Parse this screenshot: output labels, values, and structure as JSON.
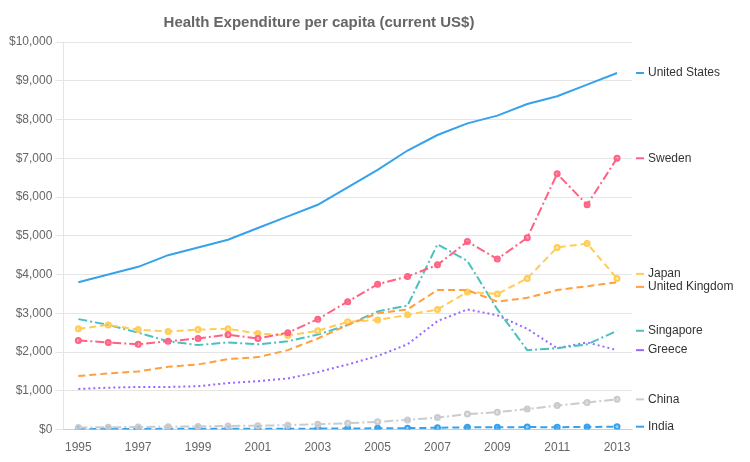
{
  "chart_data": {
    "type": "line",
    "title": "Health Expenditure per capita (current US$)",
    "x": [
      1995,
      1996,
      1997,
      1998,
      1999,
      2000,
      2001,
      2002,
      2003,
      2004,
      2005,
      2006,
      2007,
      2008,
      2009,
      2010,
      2011,
      2012,
      2013
    ],
    "series": [
      {
        "name": "United States",
        "values": [
          3800,
          4000,
          4200,
          4500,
          4700,
          4900,
          5200,
          5500,
          5800,
          6250,
          6700,
          7200,
          7600,
          7900,
          8100,
          8400,
          8600,
          8900,
          9200
        ],
        "line_style": "solid",
        "marker": "none"
      },
      {
        "name": "Sweden",
        "values": [
          2300,
          2250,
          2200,
          2280,
          2350,
          2450,
          2350,
          2500,
          2850,
          3300,
          3750,
          3950,
          4250,
          4850,
          4400,
          4950,
          6600,
          5800,
          7000
        ],
        "line_style": "dashdot",
        "marker": "dot"
      },
      {
        "name": "United Kingdom",
        "values": [
          1380,
          1450,
          1500,
          1620,
          1680,
          1820,
          1870,
          2050,
          2350,
          2700,
          3000,
          3100,
          3600,
          3600,
          3300,
          3400,
          3600,
          3700,
          3800
        ],
        "line_style": "dashed",
        "marker": "none"
      },
      {
        "name": "Japan",
        "values": [
          2600,
          2700,
          2580,
          2530,
          2580,
          2600,
          2480,
          2430,
          2550,
          2780,
          2830,
          2960,
          3100,
          3550,
          3500,
          3900,
          4700,
          4800,
          3900
        ],
        "line_style": "dashed",
        "marker": "dot"
      },
      {
        "name": "Singapore",
        "values": [
          2850,
          2700,
          2500,
          2280,
          2180,
          2250,
          2200,
          2280,
          2450,
          2700,
          3050,
          3200,
          4780,
          4350,
          3100,
          2050,
          2100,
          2200,
          2550
        ],
        "line_style": "dashdot",
        "marker": "none"
      },
      {
        "name": "Greece",
        "values": [
          1050,
          1080,
          1100,
          1100,
          1120,
          1200,
          1250,
          1320,
          1480,
          1680,
          1900,
          2200,
          2800,
          3100,
          2950,
          2600,
          2100,
          2250,
          2050
        ],
        "line_style": "dotted",
        "marker": "none"
      },
      {
        "name": "China",
        "values": [
          55,
          60,
          68,
          75,
          82,
          95,
          100,
          115,
          140,
          165,
          200,
          250,
          310,
          400,
          450,
          530,
          620,
          700,
          780
        ],
        "line_style": "dashdot",
        "marker": "dot"
      },
      {
        "name": "India",
        "values": [
          17,
          18,
          18,
          19,
          20,
          21,
          22,
          23,
          25,
          29,
          33,
          38,
          47,
          58,
          60,
          65,
          62,
          68,
          75
        ],
        "line_style": "dashed",
        "marker": "dot"
      }
    ],
    "xlim": [
      1994.5,
      2013.5
    ],
    "xticks": [
      1995,
      1997,
      1999,
      2001,
      2003,
      2005,
      2007,
      2009,
      2011,
      2013
    ],
    "ylim": [
      0,
      10000
    ],
    "yticks": [
      {
        "value": 0,
        "label": "$0"
      },
      {
        "value": 1000,
        "label": "$1,000"
      },
      {
        "value": 2000,
        "label": "$2,000"
      },
      {
        "value": 3000,
        "label": "$3,000"
      },
      {
        "value": 4000,
        "label": "$4,000"
      },
      {
        "value": 5000,
        "label": "$5,000"
      },
      {
        "value": 6000,
        "label": "$6,000"
      },
      {
        "value": 7000,
        "label": "$7,000"
      },
      {
        "value": 8000,
        "label": "$8,000"
      },
      {
        "value": 9000,
        "label": "$9,000"
      },
      {
        "value": 10000,
        "label": "$10,000"
      }
    ],
    "grid": "y"
  }
}
